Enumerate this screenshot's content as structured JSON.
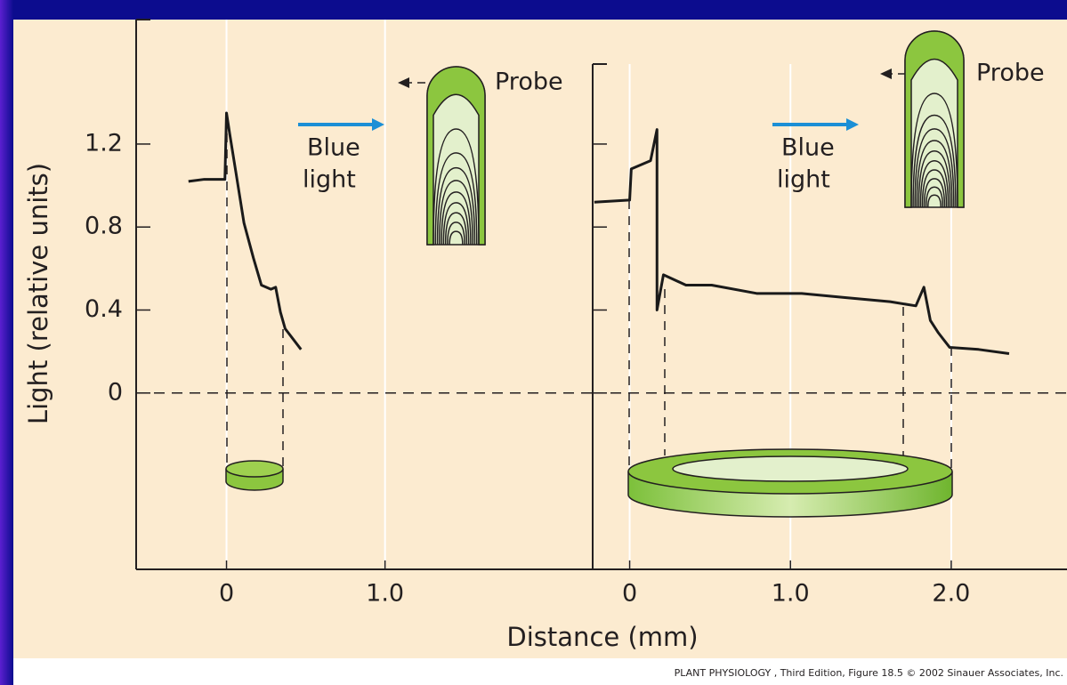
{
  "y_label": "Light (relative units)",
  "x_label": "Distance (mm)",
  "credit": "PLANT PHYSIOLOGY , Third Edition, Figure 18.5 © 2002 Sinauer Associates, Inc.",
  "chart_data": [
    {
      "type": "line",
      "x": [
        -0.24,
        -0.14,
        -0.01,
        0.0,
        0.02,
        0.06,
        0.11,
        0.17,
        0.22,
        0.28,
        0.31,
        0.34,
        0.37,
        0.39,
        0.47
      ],
      "series": [
        {
          "color": "#1a1a1a",
          "values": [
            1.02,
            1.03,
            1.03,
            1.35,
            1.25,
            1.06,
            0.82,
            0.65,
            0.52,
            0.5,
            0.51,
            0.39,
            0.31,
            0.29,
            0.21
          ]
        }
      ],
      "xlim": [
        -0.57,
        2.31
      ],
      "xticks": [
        0,
        {
          "value": 1,
          "label": "1.0"
        }
      ],
      "ylim": [
        -0.85,
        1.8
      ],
      "yticks": [
        0,
        0.4,
        0.8,
        1.2
      ],
      "ytick_labels": true,
      "grid": true,
      "zero_line": true,
      "annotations": [
        "Blue",
        "light",
        "Probe"
      ]
    },
    {
      "type": "line",
      "x": [
        -0.22,
        0.0,
        0.01,
        0.07,
        0.13,
        0.17,
        0.17,
        0.21,
        0.35,
        0.51,
        0.79,
        1.07,
        1.34,
        1.62,
        1.78,
        1.83,
        1.87,
        1.92,
        1.99,
        2.17,
        2.36
      ],
      "series": [
        {
          "color": "#1a1a1a",
          "values": [
            0.92,
            0.93,
            1.08,
            1.1,
            1.12,
            1.27,
            0.4,
            0.57,
            0.52,
            0.52,
            0.48,
            0.48,
            0.46,
            0.44,
            0.42,
            0.51,
            0.35,
            0.29,
            0.22,
            0.21,
            0.19
          ]
        }
      ],
      "xlim": [
        -0.23,
        2.72
      ],
      "xticks": [
        0,
        {
          "value": 1,
          "label": "1.0"
        },
        {
          "value": 2,
          "label": "2.0"
        }
      ],
      "ylim": [
        -0.85,
        1.8
      ],
      "yticks": [
        0,
        0.4,
        0.8,
        1.2
      ],
      "ytick_labels": false,
      "grid": true,
      "zero_line": true,
      "annotations": [
        "Blue",
        "light",
        "Probe"
      ]
    }
  ]
}
